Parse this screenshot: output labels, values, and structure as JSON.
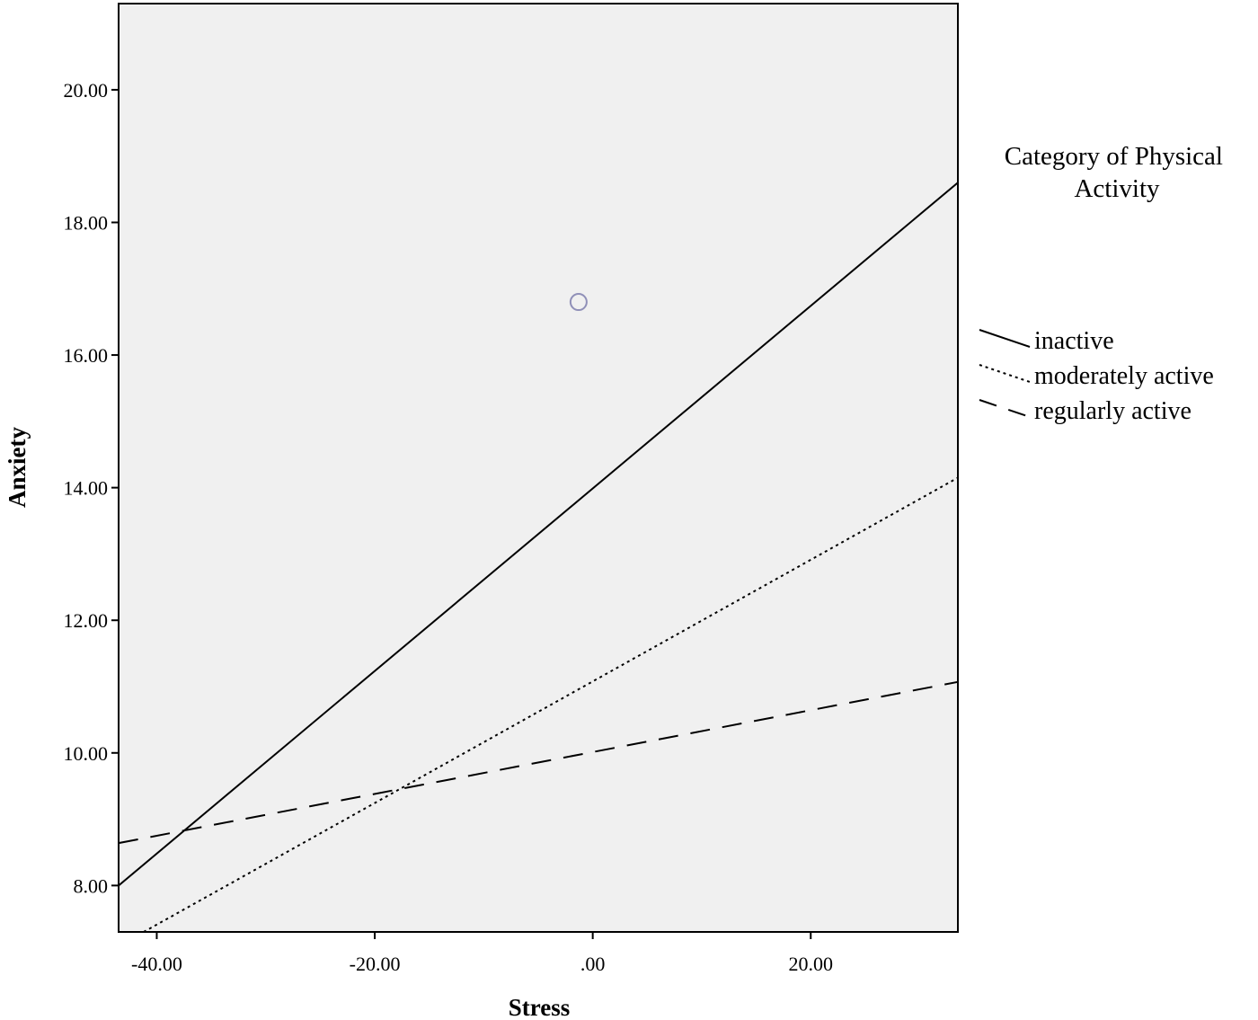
{
  "chart_data": {
    "type": "line",
    "title": "",
    "xlabel": "Stress",
    "ylabel": "Anxiety",
    "xlim": [
      -43.5,
      33.5
    ],
    "ylim": [
      7.3,
      21.3
    ],
    "x_ticks": [
      -40,
      -20,
      0,
      20
    ],
    "x_tick_labels": [
      "-40.00",
      "-20.00",
      ".00",
      "20.00"
    ],
    "y_ticks": [
      8,
      10,
      12,
      14,
      16,
      18,
      20
    ],
    "y_tick_labels": [
      "8.00",
      "10.00",
      "12.00",
      "14.00",
      "16.00",
      "18.00",
      "20.00"
    ],
    "grid": false,
    "legend_title": "Category of Physical Activity",
    "legend_placement": "right",
    "plot_background": "#f0f0f0",
    "series": [
      {
        "name": "inactive",
        "style": "solid",
        "x": [
          -43.5,
          33.5
        ],
        "y": [
          8.0,
          18.6
        ]
      },
      {
        "name": "moderately active",
        "style": "dotted",
        "x": [
          -41.2,
          33.5
        ],
        "y": [
          7.3,
          14.15
        ]
      },
      {
        "name": "regularly active",
        "style": "dashed",
        "x": [
          -43.5,
          33.5
        ],
        "y": [
          8.64,
          11.07
        ]
      }
    ],
    "points": [
      {
        "x": -1.3,
        "y": 16.8,
        "marker": "hollow-circle",
        "color": "#9090b8"
      }
    ]
  }
}
